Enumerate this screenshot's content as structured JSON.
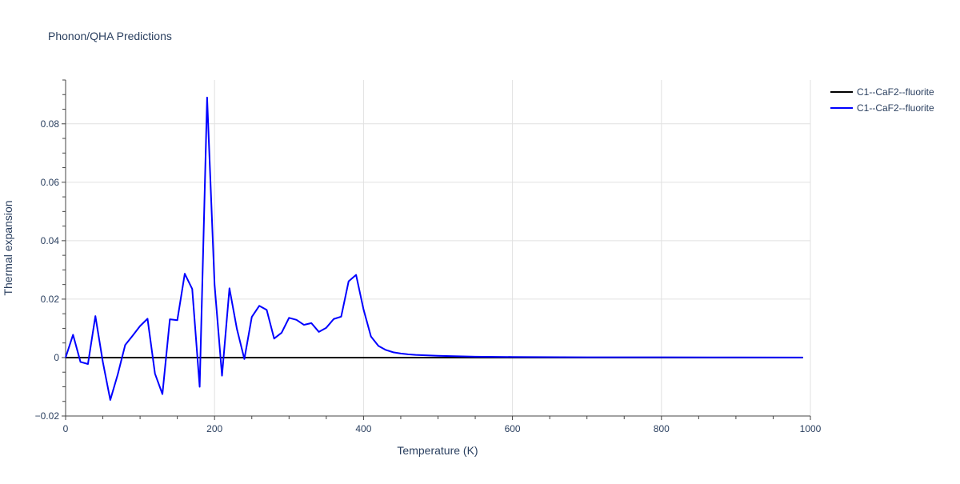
{
  "chart_data": {
    "type": "line",
    "title": "Phonon/QHA Predictions",
    "xlabel": "Temperature (K)",
    "ylabel": "Thermal expansion",
    "xlim": [
      0,
      1000
    ],
    "ylim": [
      -0.02,
      0.095
    ],
    "x_ticks": [
      0,
      200,
      400,
      600,
      800,
      1000
    ],
    "y_ticks": [
      -0.02,
      0,
      0.02,
      0.04,
      0.06,
      0.08
    ],
    "y_tick_labels": [
      "−0.02",
      "0",
      "0.02",
      "0.04",
      "0.06",
      "0.08"
    ],
    "grid": true,
    "legend_position": "top-right",
    "colors": {
      "black": "#000000",
      "blue": "#0000ff"
    },
    "series": [
      {
        "name": "C1--CaF2--fluorite",
        "color": "#000000",
        "x": [
          0,
          990
        ],
        "y": [
          0,
          0
        ]
      },
      {
        "name": "C1--CaF2--fluorite",
        "color": "#0000ff",
        "x": [
          0,
          10,
          20,
          30,
          40,
          50,
          60,
          70,
          80,
          90,
          100,
          110,
          120,
          130,
          140,
          150,
          160,
          170,
          180,
          190,
          200,
          210,
          220,
          230,
          240,
          250,
          260,
          270,
          280,
          290,
          300,
          310,
          320,
          330,
          340,
          350,
          360,
          370,
          380,
          390,
          400,
          410,
          420,
          430,
          440,
          450,
          460,
          470,
          480,
          500,
          550,
          600,
          700,
          800,
          900,
          990
        ],
        "y": [
          0,
          0.0078,
          -0.0015,
          -0.0022,
          0.0142,
          -0.0015,
          -0.0145,
          -0.0058,
          0.0043,
          0.0075,
          0.0108,
          0.0133,
          -0.0055,
          -0.0125,
          0.0131,
          0.0128,
          0.0287,
          0.0235,
          -0.01,
          0.089,
          0.025,
          -0.0062,
          0.0237,
          0.0098,
          -0.0005,
          0.0139,
          0.0177,
          0.0163,
          0.0065,
          0.0085,
          0.0136,
          0.0129,
          0.0112,
          0.0118,
          0.0088,
          0.0102,
          0.0132,
          0.014,
          0.0261,
          0.0283,
          0.0165,
          0.0072,
          0.004,
          0.0026,
          0.0018,
          0.0014,
          0.0011,
          0.0009,
          0.0008,
          0.0006,
          0.0003,
          0.0002,
          0.0001,
          0.0001,
          5e-05,
          2e-05
        ]
      }
    ]
  }
}
